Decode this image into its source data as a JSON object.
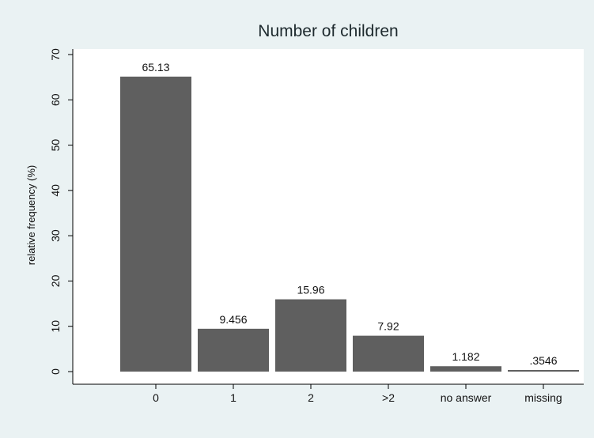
{
  "chart_data": {
    "type": "bar",
    "title": "Number of children",
    "xlabel": "",
    "ylabel": "relative frequency (%)",
    "categories": [
      "0",
      "1",
      "2",
      ">2",
      "no answer",
      "missing"
    ],
    "values": [
      65.13,
      9.456,
      15.96,
      7.92,
      1.182,
      0.3546
    ],
    "value_labels": [
      "65.13",
      "9.456",
      "15.96",
      "7.92",
      "1.182",
      ".3546"
    ],
    "ylim": [
      0,
      70
    ],
    "yticks": [
      0,
      10,
      20,
      30,
      40,
      50,
      60,
      70
    ],
    "grid": false,
    "colors": {
      "outer_background": "#eaf2f3",
      "plot_background": "#ffffff",
      "bar": "#5f5f5f",
      "axis": "#000000",
      "title": "#1e2a2e"
    }
  }
}
